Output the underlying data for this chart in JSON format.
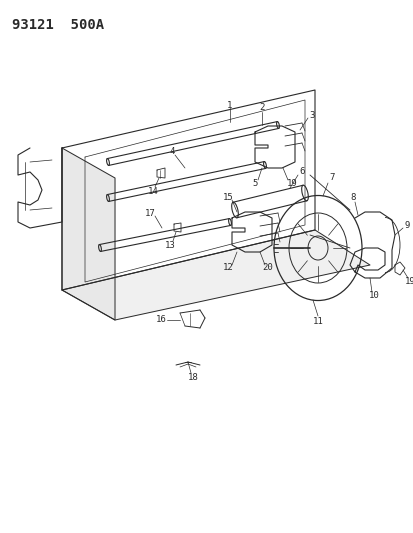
{
  "title": "93121  500A",
  "bg_color": "#ffffff",
  "line_color": "#2a2a2a",
  "title_fontsize": 10,
  "label_fontsize": 6.5,
  "figsize": [
    4.14,
    5.33
  ],
  "dpi": 100
}
